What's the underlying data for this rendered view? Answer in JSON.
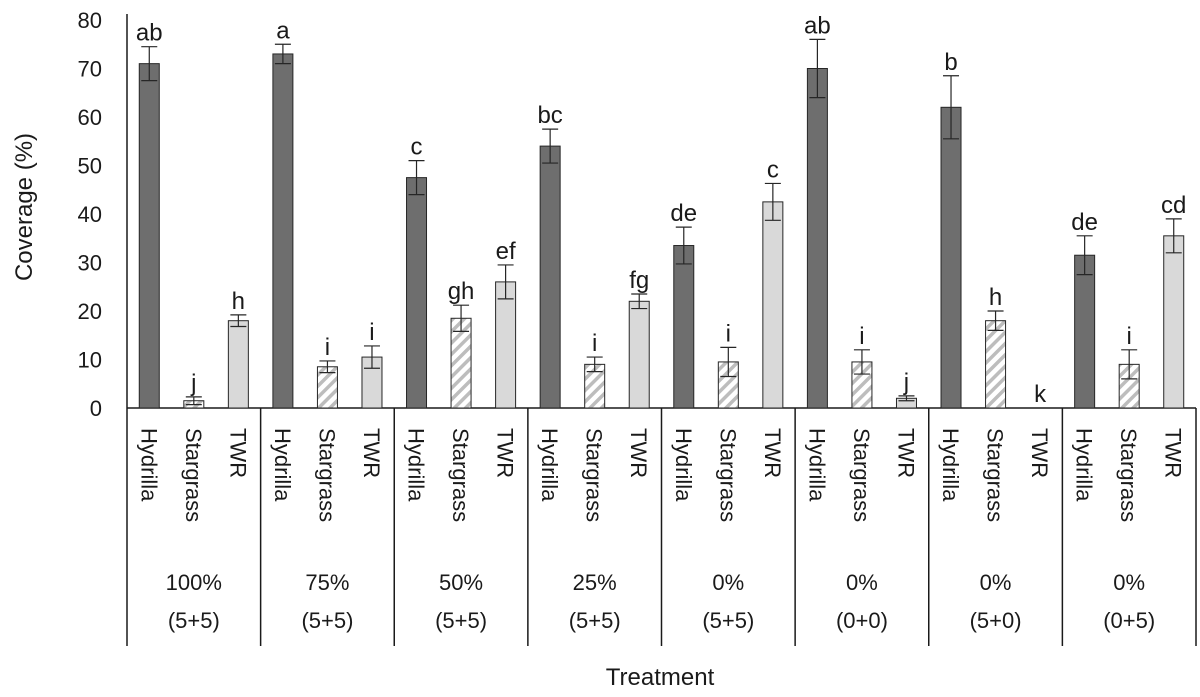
{
  "colors": {
    "hydrilla": "#6e6e6e",
    "stargrass_fill": "#ffffff",
    "stargrass_hatch": "#bdbdbd",
    "twr": "#d9d9d9",
    "bar_stroke": "#262626",
    "axis": "#1a1a1a"
  },
  "chart_data": {
    "type": "bar",
    "xlabel": "Treatment",
    "ylabel": "Coverage (%)",
    "ylim": [
      0,
      80
    ],
    "yticks": [
      "0",
      "10",
      "20",
      "30",
      "40",
      "50",
      "60",
      "70",
      "80"
    ],
    "grid": false,
    "legend": "none",
    "species": [
      "Hydrilla",
      "Stargrass",
      "TWR"
    ],
    "groups": [
      {
        "line1": "100%",
        "line2": "(5+5)",
        "values": [
          71,
          1.5,
          18
        ],
        "errors": [
          3.5,
          0.8,
          1.2
        ],
        "letters": [
          "ab",
          "j",
          "h"
        ]
      },
      {
        "line1": "75%",
        "line2": "(5+5)",
        "values": [
          73,
          8.5,
          10.5
        ],
        "errors": [
          2,
          1.2,
          2.3
        ],
        "letters": [
          "a",
          "i",
          "i"
        ]
      },
      {
        "line1": "50%",
        "line2": "(5+5)",
        "values": [
          47.5,
          18.5,
          26
        ],
        "errors": [
          3.5,
          2.7,
          3.5
        ],
        "letters": [
          "c",
          "gh",
          "ef"
        ]
      },
      {
        "line1": "25%",
        "line2": "(5+5)",
        "values": [
          54,
          9,
          22
        ],
        "errors": [
          3.5,
          1.5,
          1.5
        ],
        "letters": [
          "bc",
          "i",
          "fg"
        ]
      },
      {
        "line1": "0%",
        "line2": "(5+5)",
        "values": [
          33.5,
          9.5,
          42.5
        ],
        "errors": [
          3.8,
          3,
          3.8
        ],
        "letters": [
          "de",
          "i",
          "c"
        ]
      },
      {
        "line1": "0%",
        "line2": "(0+0)",
        "values": [
          70,
          9.5,
          2
        ],
        "errors": [
          6,
          2.5,
          0.5
        ],
        "letters": [
          "ab",
          "i",
          "j"
        ]
      },
      {
        "line1": "0%",
        "line2": "(5+0)",
        "values": [
          62,
          18,
          0
        ],
        "errors": [
          6.5,
          2,
          0
        ],
        "letters": [
          "b",
          "h",
          "k"
        ]
      },
      {
        "line1": "0%",
        "line2": "(0+5)",
        "values": [
          31.5,
          9,
          35.5
        ],
        "errors": [
          4,
          3,
          3.5
        ],
        "letters": [
          "de",
          "i",
          "cd"
        ]
      }
    ]
  }
}
